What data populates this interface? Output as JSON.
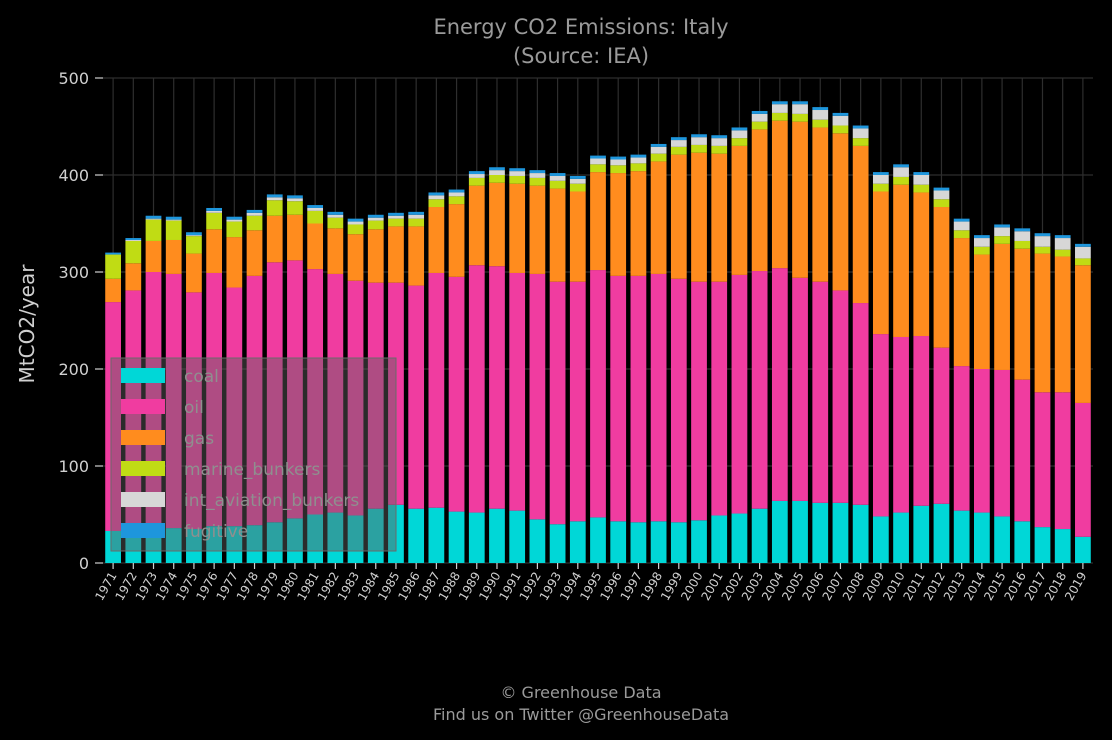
{
  "chart_data": {
    "type": "bar",
    "stacked": true,
    "title": "Energy CO2 Emissions: Italy",
    "subtitle": "(Source: IEA)",
    "xlabel": "",
    "ylabel": "MtCO2/year",
    "ylim": [
      0,
      500
    ],
    "yticks": [
      0,
      100,
      200,
      300,
      400,
      500
    ],
    "grid": true,
    "legend_position": "lower-left",
    "categories": [
      "1971",
      "1972",
      "1973",
      "1974",
      "1975",
      "1976",
      "1977",
      "1978",
      "1979",
      "1980",
      "1981",
      "1982",
      "1983",
      "1984",
      "1985",
      "1986",
      "1987",
      "1988",
      "1989",
      "1990",
      "1991",
      "1992",
      "1993",
      "1994",
      "1995",
      "1996",
      "1997",
      "1998",
      "1999",
      "2000",
      "2001",
      "2002",
      "2003",
      "2004",
      "2005",
      "2006",
      "2007",
      "2008",
      "2009",
      "2010",
      "2011",
      "2012",
      "2013",
      "2014",
      "2015",
      "2016",
      "2017",
      "2018",
      "2019"
    ],
    "series": [
      {
        "name": "coal",
        "color": "#00d7d7",
        "values": [
          33,
          36,
          38,
          36,
          35,
          38,
          38,
          39,
          42,
          46,
          50,
          52,
          49,
          56,
          60,
          56,
          57,
          53,
          52,
          56,
          54,
          45,
          40,
          43,
          47,
          43,
          42,
          43,
          42,
          44,
          49,
          51,
          56,
          64,
          64,
          62,
          62,
          60,
          48,
          52,
          59,
          61,
          54,
          52,
          48,
          43,
          37,
          35,
          27
        ]
      },
      {
        "name": "oil",
        "color": "#f03ca0",
        "values": [
          236,
          245,
          262,
          262,
          244,
          261,
          246,
          257,
          268,
          266,
          253,
          246,
          242,
          233,
          229,
          230,
          242,
          242,
          255,
          250,
          245,
          253,
          250,
          247,
          255,
          253,
          254,
          255,
          251,
          246,
          241,
          246,
          245,
          240,
          230,
          228,
          219,
          208,
          188,
          181,
          175,
          161,
          149,
          148,
          151,
          146,
          139,
          141,
          138
        ]
      },
      {
        "name": "gas",
        "color": "#ff8c1e",
        "values": [
          24,
          28,
          32,
          35,
          40,
          45,
          52,
          47,
          48,
          47,
          47,
          47,
          48,
          55,
          58,
          61,
          68,
          75,
          82,
          86,
          92,
          91,
          96,
          93,
          101,
          106,
          108,
          116,
          128,
          133,
          132,
          133,
          146,
          152,
          161,
          159,
          162,
          162,
          147,
          157,
          148,
          145,
          132,
          118,
          130,
          135,
          143,
          140,
          142
        ]
      },
      {
        "name": "marine_bunkers",
        "color": "#c0dc14",
        "values": [
          25,
          23,
          22,
          20,
          18,
          17,
          16,
          15,
          16,
          14,
          13,
          11,
          10,
          9,
          8,
          8,
          8,
          8,
          8,
          8,
          8,
          8,
          8,
          8,
          8,
          8,
          8,
          8,
          8,
          8,
          8,
          8,
          8,
          8,
          8,
          8,
          8,
          8,
          8,
          8,
          8,
          8,
          8,
          8,
          8,
          8,
          7,
          7,
          7
        ]
      },
      {
        "name": "int_aviation_bunkers",
        "color": "#d7d7d7",
        "values": [
          0,
          1,
          1,
          1,
          1,
          2,
          2,
          3,
          3,
          3,
          3,
          3,
          3,
          3,
          3,
          4,
          4,
          4,
          4,
          5,
          5,
          5,
          5,
          5,
          6,
          6,
          6,
          7,
          7,
          8,
          8,
          8,
          8,
          9,
          10,
          10,
          10,
          10,
          9,
          10,
          10,
          9,
          9,
          9,
          9,
          10,
          11,
          12,
          12
        ]
      },
      {
        "name": "fugitive",
        "color": "#1e96dc",
        "values": [
          2,
          2,
          3,
          3,
          3,
          3,
          3,
          3,
          3,
          3,
          3,
          3,
          3,
          3,
          3,
          3,
          3,
          3,
          3,
          3,
          3,
          3,
          3,
          3,
          3,
          3,
          3,
          3,
          3,
          3,
          3,
          3,
          3,
          3,
          3,
          3,
          3,
          3,
          3,
          3,
          3,
          3,
          3,
          3,
          3,
          3,
          3,
          3,
          3
        ]
      }
    ]
  },
  "footer": {
    "copyright": "© Greenhouse Data",
    "twitter": "Find us on Twitter @GreenhouseData"
  }
}
